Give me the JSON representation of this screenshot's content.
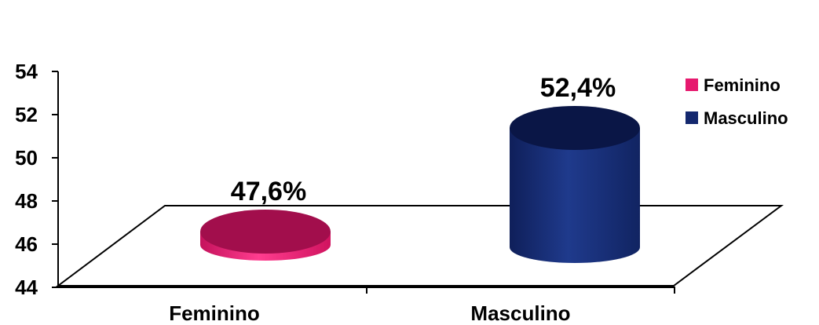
{
  "chart_data": {
    "type": "bar",
    "style": "3d-cylinder",
    "categories": [
      "Feminino",
      "Masculino"
    ],
    "values": [
      47.6,
      52.4
    ],
    "data_labels": [
      "47,6%",
      "52,4%"
    ],
    "series": [
      {
        "name": "Feminino",
        "color": "#e6196e",
        "dark": "#a20e4c",
        "light": "#ff3d8f"
      },
      {
        "name": "Masculino",
        "color": "#14286e",
        "dark": "#0a1646",
        "light": "#1f3a8c"
      }
    ],
    "yticks": [
      "44",
      "46",
      "48",
      "50",
      "52",
      "54"
    ],
    "ylim": [
      44,
      54
    ],
    "grid": false,
    "legend": "top-right",
    "title": "",
    "xlabel": "",
    "ylabel": ""
  }
}
